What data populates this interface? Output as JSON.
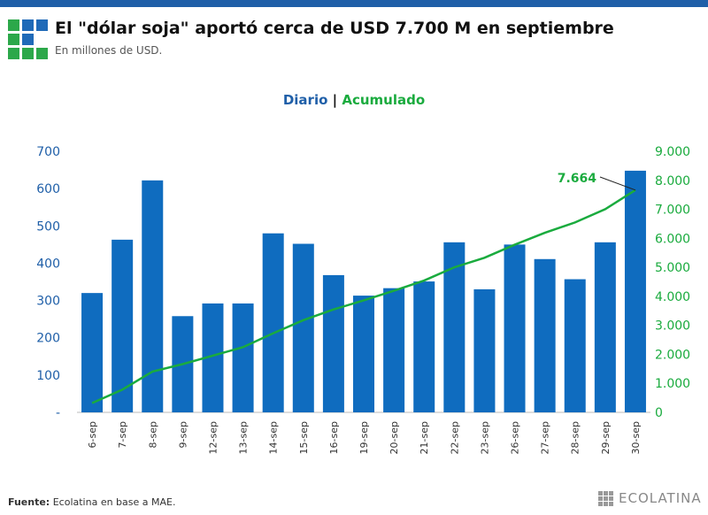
{
  "header": {
    "title": "El \"dólar soja\" aportó cerca de USD 7.700 M en septiembre",
    "subtitle": "En millones de USD."
  },
  "legend": {
    "daily": "Diario",
    "separator": "|",
    "cumulative": "Acumulado"
  },
  "footer": {
    "source_label": "Fuente:",
    "source_text": " Ecolatina en base a MAE.",
    "brand": "ECOLATINA"
  },
  "colors": {
    "bar": "#0f6cbf",
    "line": "#1aab3e",
    "axis_left": "#1f5fa8",
    "axis_right": "#1aab3e"
  },
  "chart_data": {
    "type": "bar+line",
    "categories": [
      "6-sep",
      "7-sep",
      "8-sep",
      "9-sep",
      "12-sep",
      "13-sep",
      "14-sep",
      "15-sep",
      "16-sep",
      "19-sep",
      "20-sep",
      "21-sep",
      "22-sep",
      "23-sep",
      "26-sep",
      "27-sep",
      "28-sep",
      "29-sep",
      "30-sep"
    ],
    "series": [
      {
        "name": "Diario",
        "type": "bar",
        "axis": "left",
        "values": [
          320,
          463,
          622,
          258,
          292,
          292,
          480,
          452,
          368,
          313,
          333,
          351,
          456,
          330,
          450,
          411,
          357,
          456,
          648
        ]
      },
      {
        "name": "Acumulado",
        "type": "line",
        "axis": "right",
        "values": [
          320,
          783,
          1405,
          1663,
          1955,
          2247,
          2727,
          3179,
          3547,
          3860,
          4193,
          4544,
          5000,
          5330,
          5780,
          6191,
          6548,
          7004,
          7664
        ]
      }
    ],
    "ylim_left": [
      0,
      700
    ],
    "yticks_left": [
      "-",
      "100",
      "200",
      "300",
      "400",
      "500",
      "600",
      "700"
    ],
    "ylim_right": [
      0,
      9000
    ],
    "yticks_right": [
      "0",
      "1.000",
      "2.000",
      "3.000",
      "4.000",
      "5.000",
      "6.000",
      "7.000",
      "8.000",
      "9.000"
    ],
    "annotation": "7.664",
    "grid": false
  }
}
